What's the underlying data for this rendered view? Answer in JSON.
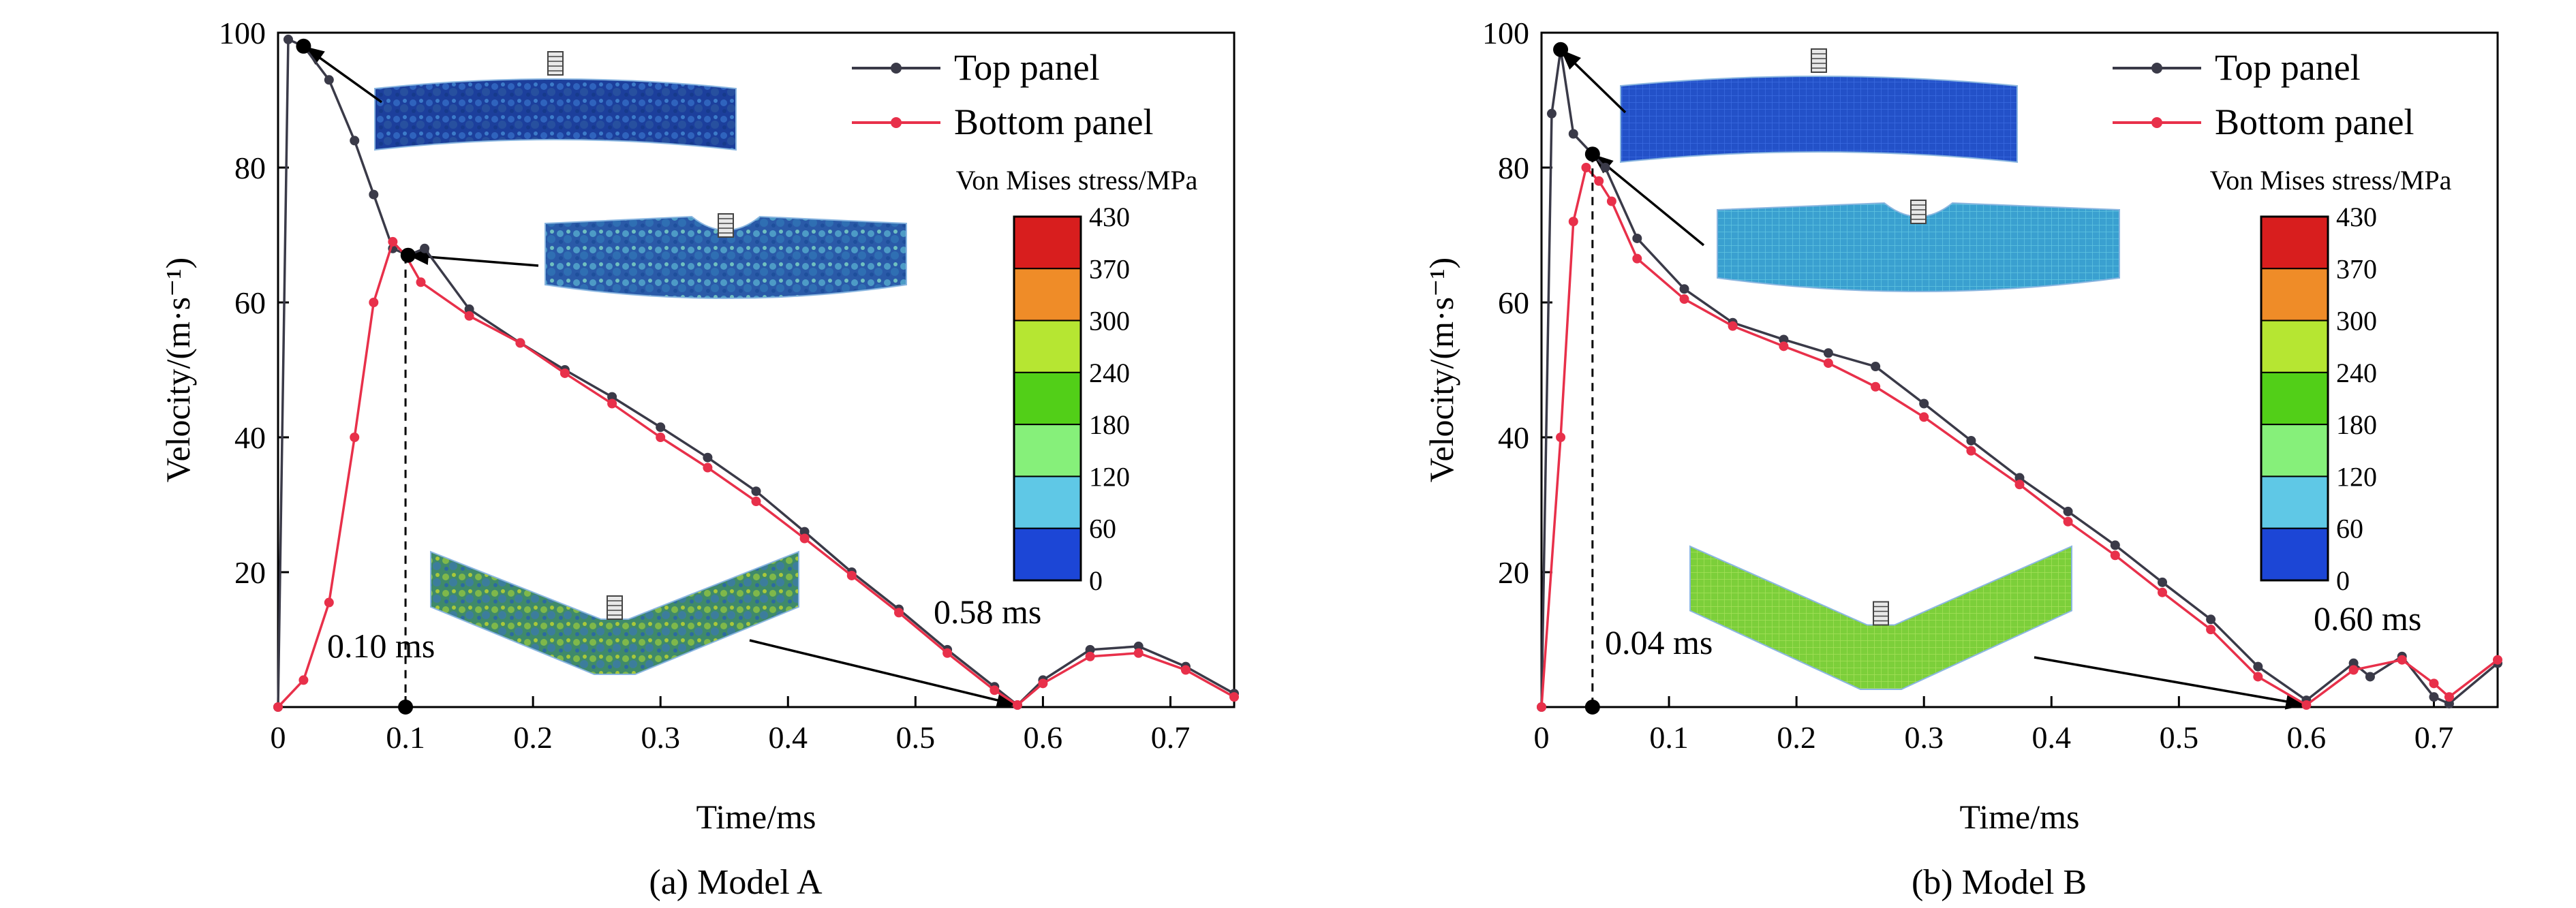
{
  "figure_width": 3780,
  "figure_height": 1333,
  "colors": {
    "top": "#3a3a48",
    "bottom": "#e8304a",
    "axis": "#000000"
  },
  "colorbar_colors": [
    "#d81e1e",
    "#ef8c28",
    "#b6e632",
    "#52cf18",
    "#86f07a",
    "#5fc8e6",
    "#1c46d6"
  ],
  "chart_data": [
    {
      "type": "line",
      "caption": "(a) Model A",
      "xlabel": "Time/ms",
      "ylabel": "Velocity/(m·s⁻¹)",
      "xlim": [
        0,
        0.75
      ],
      "ylim": [
        0,
        100
      ],
      "xticks": [
        0,
        0.1,
        0.2,
        0.3,
        0.4,
        0.5,
        0.6,
        0.7
      ],
      "xtick_labels": [
        "0",
        "0.1",
        "0.2",
        "0.3",
        "0.4",
        "0.5",
        "0.6",
        "0.7"
      ],
      "yticks": [
        20,
        40,
        60,
        80,
        100
      ],
      "ytick_labels": [
        "20",
        "40",
        "60",
        "80",
        "100"
      ],
      "legend_position": "top-right",
      "series": [
        {
          "name": "Top panel",
          "x": [
            0,
            0.008,
            0.02,
            0.04,
            0.06,
            0.075,
            0.09,
            0.102,
            0.115,
            0.15,
            0.19,
            0.225,
            0.262,
            0.3,
            0.337,
            0.375,
            0.413,
            0.45,
            0.487,
            0.525,
            0.562,
            0.58,
            0.6,
            0.637,
            0.675,
            0.712,
            0.75
          ],
          "y": [
            0,
            99,
            98,
            93,
            84,
            76,
            68,
            67,
            68,
            59,
            54,
            50,
            46,
            41.5,
            37,
            32,
            26,
            20,
            14.5,
            8.5,
            3,
            0.3,
            4,
            8.5,
            9,
            6,
            2
          ]
        },
        {
          "name": "Bottom panel",
          "x": [
            0,
            0.02,
            0.04,
            0.06,
            0.075,
            0.09,
            0.1,
            0.112,
            0.15,
            0.19,
            0.225,
            0.262,
            0.3,
            0.337,
            0.375,
            0.413,
            0.45,
            0.487,
            0.525,
            0.562,
            0.58,
            0.6,
            0.637,
            0.675,
            0.712,
            0.75
          ],
          "y": [
            0,
            4,
            15.5,
            40,
            60,
            69,
            67,
            63,
            58,
            54,
            49.5,
            45,
            40,
            35.5,
            30.5,
            25,
            19.5,
            14,
            8,
            2.5,
            0.3,
            3.5,
            7.5,
            8,
            5.5,
            1.5
          ]
        }
      ],
      "annotations": [
        {
          "label": "0.10 ms",
          "x": 0.1
        },
        {
          "label": "0.58 ms",
          "x": 0.58
        }
      ],
      "colorbar": {
        "title": "Von Mises stress/MPa",
        "labels": [
          "430",
          "370",
          "300",
          "240",
          "180",
          "120",
          "60",
          "0"
        ]
      }
    },
    {
      "type": "line",
      "caption": "(b) Model B",
      "xlabel": "Time/ms",
      "ylabel": "Velocity/(m·s⁻¹)",
      "xlim": [
        0,
        0.75
      ],
      "ylim": [
        0,
        100
      ],
      "xticks": [
        0,
        0.1,
        0.2,
        0.3,
        0.4,
        0.5,
        0.6,
        0.7
      ],
      "xtick_labels": [
        "0",
        "0.1",
        "0.2",
        "0.3",
        "0.4",
        "0.5",
        "0.6",
        "0.7"
      ],
      "yticks": [
        20,
        40,
        60,
        80,
        100
      ],
      "ytick_labels": [
        "20",
        "40",
        "60",
        "80",
        "100"
      ],
      "legend_position": "top-right",
      "series": [
        {
          "name": "Top panel",
          "x": [
            0,
            0.008,
            0.015,
            0.025,
            0.04,
            0.05,
            0.075,
            0.112,
            0.15,
            0.19,
            0.225,
            0.262,
            0.3,
            0.337,
            0.375,
            0.413,
            0.45,
            0.487,
            0.525,
            0.562,
            0.6,
            0.637,
            0.65,
            0.675,
            0.7,
            0.712,
            0.75
          ],
          "y": [
            0,
            88,
            97.5,
            85,
            82,
            80,
            69.5,
            62,
            57,
            54.5,
            52.5,
            50.5,
            45,
            39.5,
            34,
            29,
            24,
            18.5,
            13,
            6,
            1,
            6.5,
            4.5,
            7.5,
            1.5,
            0.5,
            6.5
          ]
        },
        {
          "name": "Bottom panel",
          "x": [
            0,
            0.015,
            0.025,
            0.035,
            0.045,
            0.055,
            0.075,
            0.112,
            0.15,
            0.19,
            0.225,
            0.262,
            0.3,
            0.337,
            0.375,
            0.413,
            0.45,
            0.487,
            0.525,
            0.562,
            0.6,
            0.637,
            0.675,
            0.7,
            0.712,
            0.75
          ],
          "y": [
            0,
            40,
            72,
            80,
            78,
            75,
            66.5,
            60.5,
            56.5,
            53.5,
            51,
            47.5,
            43,
            38,
            33,
            27.5,
            22.5,
            17,
            11.5,
            4.5,
            0.3,
            5.5,
            7,
            3.5,
            1.5,
            7
          ]
        }
      ],
      "annotations": [
        {
          "label": "0.04 ms",
          "x": 0.04
        },
        {
          "label": "0.60 ms",
          "x": 0.6
        }
      ],
      "colorbar": {
        "title": "Von Mises stress/MPa",
        "labels": [
          "430",
          "370",
          "300",
          "240",
          "180",
          "120",
          "60",
          "0"
        ]
      }
    }
  ]
}
